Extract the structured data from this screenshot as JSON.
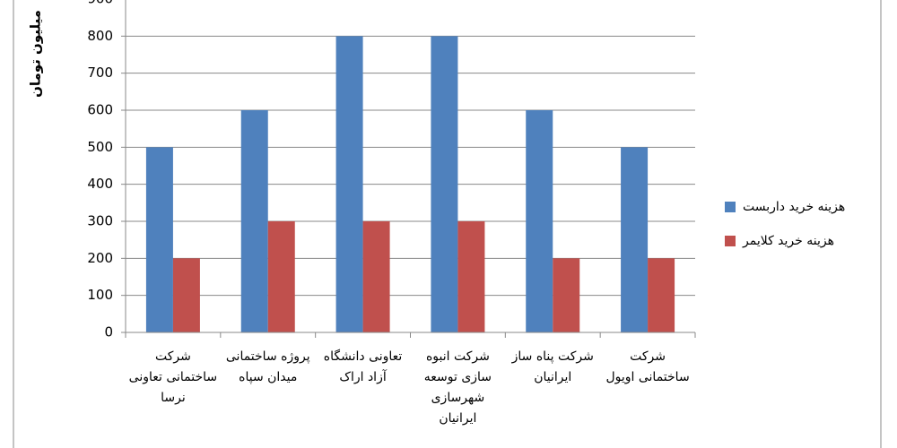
{
  "chart_data": {
    "type": "bar",
    "y_label": "میلیون تومان",
    "categories": [
      "شرکت ساختمانی تعاونی نرسا",
      "پروژه ساختمانی میدان سپاه",
      "تعاونی دانشگاه آزاد اراک",
      "شرکت انبوه سازی توسعه شهرسازی ایرانیان",
      "شرکت پناه ساز ایرانیان",
      "شرکت ساختمانی اویول"
    ],
    "series": [
      {
        "name": "هزینه خرید داربست",
        "color": "#4f81bd",
        "values": [
          500,
          600,
          800,
          800,
          600,
          500
        ]
      },
      {
        "name": "هزینه خرید کلایمر",
        "color": "#c0504d",
        "values": [
          200,
          300,
          300,
          300,
          200,
          200
        ]
      }
    ],
    "ylim": [
      0,
      900
    ],
    "yticks": [
      0,
      100,
      200,
      300,
      400,
      500,
      600,
      700,
      800,
      900
    ],
    "grid": true,
    "legend": "right"
  }
}
